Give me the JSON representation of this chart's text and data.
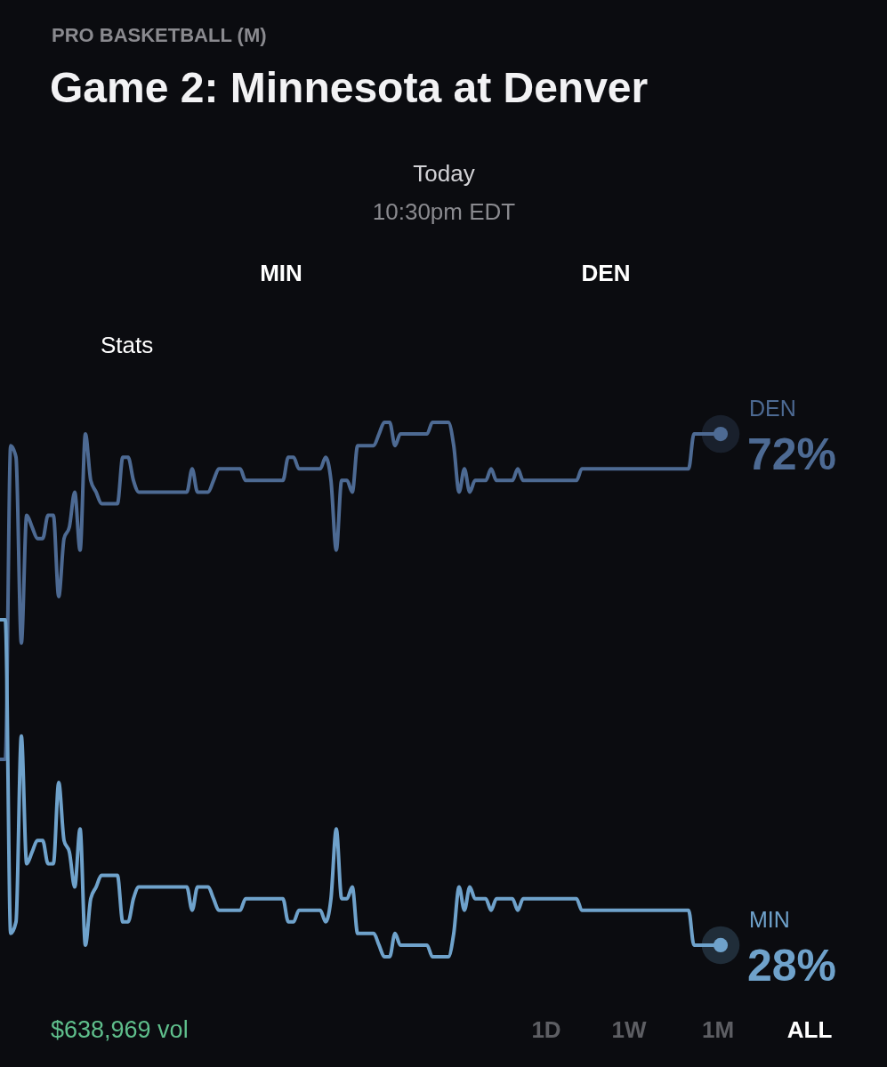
{
  "chart_data": {
    "type": "line",
    "title": "Game 2: Minnesota at Denver",
    "subtitle": "PRO BASKETBALL (M)",
    "categories": [
      null,
      null,
      null,
      null,
      null,
      null,
      null,
      null,
      null,
      null,
      null,
      null,
      null,
      null,
      null,
      null,
      null,
      null,
      null,
      null,
      null,
      null,
      null,
      null,
      null,
      null,
      null,
      null,
      null,
      null,
      null,
      null,
      null,
      null,
      null,
      null,
      null,
      null,
      null,
      null,
      null,
      null,
      null,
      null,
      null,
      null,
      null,
      null,
      null,
      null,
      null,
      null,
      null,
      null,
      null,
      null,
      null,
      null,
      null,
      null,
      null,
      null,
      null,
      null,
      null,
      null,
      null,
      null,
      null,
      null,
      null,
      null,
      null,
      null,
      null,
      null,
      null,
      null,
      null,
      null,
      null,
      null,
      null,
      null,
      null,
      null,
      null,
      null,
      null,
      null,
      null,
      null,
      null,
      null,
      null,
      null,
      null,
      null,
      null,
      null,
      null,
      null,
      null,
      null,
      null,
      null,
      null,
      null,
      null,
      null,
      null,
      null,
      null,
      null,
      null,
      null,
      null,
      null,
      null,
      null,
      null,
      null,
      null,
      null,
      null,
      null,
      null,
      null,
      null,
      null,
      null,
      null,
      null,
      null,
      null,
      null
    ],
    "series": [
      {
        "name": "DEN",
        "color": "#4d6a93",
        "values": [
          44,
          44,
          71,
          70,
          54,
          65,
          64,
          63,
          63,
          65,
          65,
          58,
          63,
          64,
          67,
          62,
          72,
          68,
          67,
          66,
          66,
          66,
          66,
          70,
          70,
          68,
          67,
          67,
          67,
          67,
          67,
          67,
          67,
          67,
          67,
          67,
          69,
          67,
          67,
          67,
          68,
          69,
          69,
          69,
          69,
          69,
          68,
          68,
          68,
          68,
          68,
          68,
          68,
          68,
          70,
          70,
          69,
          69,
          69,
          69,
          69,
          70,
          68,
          62,
          68,
          68,
          67,
          71,
          71,
          71,
          71,
          72,
          73,
          73,
          71,
          72,
          72,
          72,
          72,
          72,
          72,
          73,
          73,
          73,
          73,
          71,
          67,
          69,
          67,
          68,
          68,
          68,
          69,
          68,
          68,
          68,
          68,
          69,
          68,
          68,
          68,
          68,
          68,
          68,
          68,
          68,
          68,
          68,
          68,
          69,
          69,
          69,
          69,
          69,
          69,
          69,
          69,
          69,
          69,
          69,
          69,
          69,
          69,
          69,
          69,
          69,
          69,
          69,
          69,
          69,
          72,
          72,
          72,
          72,
          72,
          72
        ],
        "value_labels": [
          null,
          null,
          null,
          null,
          null,
          null,
          null,
          null,
          null,
          null,
          null,
          null,
          null,
          null,
          null,
          null,
          null,
          null,
          null,
          null,
          null,
          null,
          null,
          null,
          null,
          null,
          null,
          null,
          null,
          null,
          null,
          null,
          null,
          null,
          null,
          null,
          null,
          null,
          null,
          null,
          null,
          null,
          null,
          null,
          null,
          null,
          null,
          null,
          null,
          null,
          null,
          null,
          null,
          null,
          null,
          null,
          null,
          null,
          null,
          null,
          null,
          null,
          null,
          null,
          null,
          null,
          null,
          null,
          null,
          null,
          null,
          null,
          null,
          null,
          null,
          null,
          null,
          null,
          null,
          null,
          null,
          null,
          null,
          null,
          null,
          null,
          null,
          null,
          null,
          null,
          null,
          null,
          null,
          null,
          null,
          null,
          null,
          null,
          null,
          null,
          null,
          null,
          null,
          null,
          null,
          null,
          null,
          null,
          null,
          null,
          null,
          null,
          null,
          null,
          null,
          null,
          null,
          null,
          null,
          null,
          null,
          null,
          null,
          null,
          null,
          null,
          null,
          null,
          null,
          null,
          null,
          null,
          null,
          null,
          null,
          "72%"
        ]
      },
      {
        "name": "MIN",
        "color": "#6fa2cb",
        "values": [
          56,
          56,
          29,
          30,
          46,
          35,
          36,
          37,
          37,
          35,
          35,
          42,
          37,
          36,
          33,
          38,
          28,
          32,
          33,
          34,
          34,
          34,
          34,
          30,
          30,
          32,
          33,
          33,
          33,
          33,
          33,
          33,
          33,
          33,
          33,
          33,
          31,
          33,
          33,
          33,
          32,
          31,
          31,
          31,
          31,
          31,
          32,
          32,
          32,
          32,
          32,
          32,
          32,
          32,
          30,
          30,
          31,
          31,
          31,
          31,
          31,
          30,
          32,
          38,
          32,
          32,
          33,
          29,
          29,
          29,
          29,
          28,
          27,
          27,
          29,
          28,
          28,
          28,
          28,
          28,
          28,
          27,
          27,
          27,
          27,
          29,
          33,
          31,
          33,
          32,
          32,
          32,
          31,
          32,
          32,
          32,
          32,
          31,
          32,
          32,
          32,
          32,
          32,
          32,
          32,
          32,
          32,
          32,
          32,
          31,
          31,
          31,
          31,
          31,
          31,
          31,
          31,
          31,
          31,
          31,
          31,
          31,
          31,
          31,
          31,
          31,
          31,
          31,
          31,
          31,
          28,
          28,
          28,
          28,
          28,
          28
        ],
        "value_labels": [
          null,
          null,
          null,
          null,
          null,
          null,
          null,
          null,
          null,
          null,
          null,
          null,
          null,
          null,
          null,
          null,
          null,
          null,
          null,
          null,
          null,
          null,
          null,
          null,
          null,
          null,
          null,
          null,
          null,
          null,
          null,
          null,
          null,
          null,
          null,
          null,
          null,
          null,
          null,
          null,
          null,
          null,
          null,
          null,
          null,
          null,
          null,
          null,
          null,
          null,
          null,
          null,
          null,
          null,
          null,
          null,
          null,
          null,
          null,
          null,
          null,
          null,
          null,
          null,
          null,
          null,
          null,
          null,
          null,
          null,
          null,
          null,
          null,
          null,
          null,
          null,
          null,
          null,
          null,
          null,
          null,
          null,
          null,
          null,
          null,
          null,
          null,
          null,
          null,
          null,
          null,
          null,
          null,
          null,
          null,
          null,
          null,
          null,
          null,
          null,
          null,
          null,
          null,
          null,
          null,
          null,
          null,
          null,
          null,
          null,
          null,
          null,
          null,
          null,
          null,
          null,
          null,
          null,
          null,
          null,
          null,
          null,
          null,
          null,
          null,
          null,
          null,
          null,
          null,
          null,
          null,
          null,
          null,
          null,
          null,
          "28%"
        ]
      }
    ],
    "tick_labels": false,
    "annotations": [
      "Today",
      "10:30pm EDT",
      "MIN",
      "DEN",
      "Stats",
      "$638,969 vol",
      "1D",
      "1W",
      "1M",
      "ALL"
    ]
  }
}
